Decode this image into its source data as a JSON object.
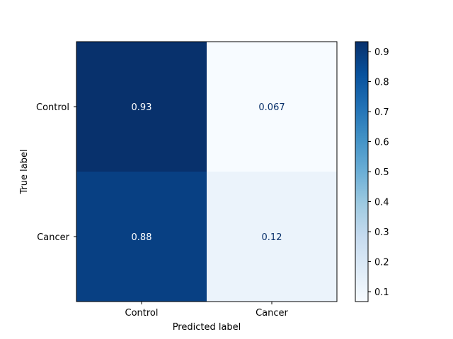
{
  "chart_data": {
    "type": "heatmap",
    "title": "",
    "xlabel": "Predicted label",
    "ylabel": "True label",
    "x_categories": [
      "Control",
      "Cancer"
    ],
    "y_categories": [
      "Control",
      "Cancer"
    ],
    "values": [
      [
        0.93,
        0.067
      ],
      [
        0.88,
        0.12
      ]
    ],
    "cell_labels": [
      [
        "0.93",
        "0.067"
      ],
      [
        "0.88",
        "0.12"
      ]
    ],
    "colormap": "Blues",
    "colorbar": {
      "range": [
        0.067,
        0.933
      ],
      "ticks": [
        0.1,
        0.2,
        0.3,
        0.4,
        0.5,
        0.6,
        0.7,
        0.8,
        0.9
      ],
      "tick_labels": [
        "0.1",
        "0.2",
        "0.3",
        "0.4",
        "0.5",
        "0.6",
        "0.7",
        "0.8",
        "0.9"
      ]
    }
  }
}
